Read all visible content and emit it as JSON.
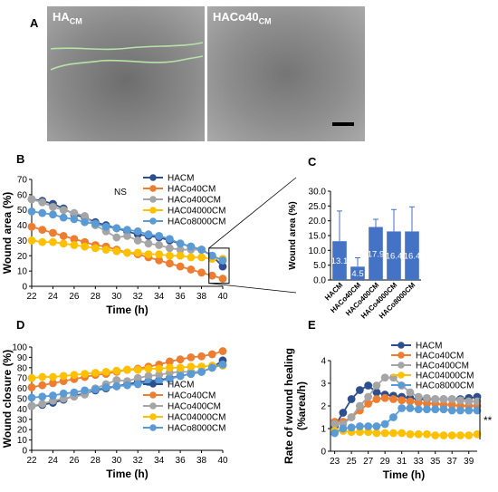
{
  "panel_letters": [
    "A",
    "B",
    "C",
    "D",
    "E"
  ],
  "micrographs": [
    {
      "main": "HA",
      "sub": "CM"
    },
    {
      "main": "HACo40",
      "sub": "CM"
    }
  ],
  "colors": {
    "HACM": "#2e4f8f",
    "HACo40CM": "#ed7d31",
    "HACo400CM": "#a5a5a5",
    "HAC04000CM": "#ffc000",
    "HACo8000CM": "#5b9bd5",
    "bar": "#4472c4"
  },
  "chart_data": [
    {
      "id": "B",
      "type": "line",
      "xlabel": "Time (h)",
      "ylabel": "Wound area (%)",
      "xlim": [
        22,
        40
      ],
      "ylim": [
        0,
        70
      ],
      "xticks": [
        22,
        24,
        26,
        28,
        30,
        32,
        34,
        36,
        38,
        40
      ],
      "yticks": [
        0,
        10,
        20,
        30,
        40,
        50,
        60,
        70
      ],
      "annotation": "NS",
      "legend": "top-center",
      "x": [
        22,
        23,
        24,
        25,
        26,
        27,
        28,
        29,
        30,
        31,
        32,
        33,
        34,
        35,
        36,
        37,
        38,
        39,
        40
      ],
      "series": [
        {
          "name": "HACM",
          "key": "HACM",
          "values": [
            57,
            56,
            54,
            51,
            47,
            45,
            42,
            40,
            38,
            36,
            34,
            33,
            32,
            30,
            28,
            26,
            24,
            20,
            13
          ]
        },
        {
          "name": "HACo40CM",
          "key": "HACo40CM",
          "values": [
            39,
            37,
            35,
            33,
            31,
            29,
            27,
            26,
            24,
            22,
            21,
            19,
            17,
            15,
            13,
            11,
            9,
            7,
            5
          ]
        },
        {
          "name": "HACo400CM",
          "key": "HACo400CM",
          "values": [
            57,
            55,
            52,
            50,
            48,
            46,
            40,
            36,
            32,
            33,
            30,
            28,
            27,
            25,
            24,
            24,
            24,
            20,
            17
          ]
        },
        {
          "name": "HAC04000CM",
          "key": "HAC04000CM",
          "values": [
            30,
            29,
            29,
            28,
            27,
            26,
            25,
            24,
            23,
            22,
            22,
            21,
            21,
            20,
            20,
            19,
            19,
            18,
            18
          ]
        },
        {
          "name": "HACo8000CM",
          "key": "HACo8000CM",
          "values": [
            49,
            48,
            47,
            45,
            44,
            42,
            41,
            39,
            38,
            37,
            36,
            34,
            33,
            31,
            28,
            26,
            24,
            20,
            17
          ]
        }
      ]
    },
    {
      "id": "C",
      "type": "bar",
      "ylabel": "Wound area (%)",
      "ylim": [
        0,
        30
      ],
      "yticks": [
        0.0,
        5.0,
        10.0,
        15.0,
        20.0,
        25.0,
        30.0
      ],
      "categories": [
        "HACM",
        "HACo40CM",
        "HACo400CM",
        "HACo4000CM",
        "HACo8000CM"
      ],
      "values": [
        13.1,
        4.5,
        17.9,
        16.4,
        16.4
      ],
      "value_labels": [
        "13.1",
        "4.5",
        "17.9",
        "16.4",
        "16.4"
      ],
      "errors": [
        10.2,
        3.0,
        2.6,
        7.4,
        8.3
      ]
    },
    {
      "id": "D",
      "type": "line",
      "xlabel": "Time (h)",
      "ylabel": "Wound closure (%)",
      "xlim": [
        22,
        40
      ],
      "ylim": [
        0,
        100
      ],
      "xticks": [
        22,
        24,
        26,
        28,
        30,
        32,
        34,
        36,
        38,
        40
      ],
      "yticks": [
        0,
        10,
        20,
        30,
        40,
        50,
        60,
        70,
        80,
        90,
        100
      ],
      "legend": "bottom-right",
      "x": [
        22,
        23,
        24,
        25,
        26,
        27,
        28,
        29,
        30,
        31,
        32,
        33,
        34,
        35,
        36,
        37,
        38,
        39,
        40
      ],
      "series": [
        {
          "name": "HACM",
          "key": "HACM",
          "values": [
            43,
            44,
            46,
            49,
            53,
            55,
            58,
            60,
            62,
            64,
            66,
            67,
            68,
            70,
            72,
            74,
            76,
            80,
            87
          ]
        },
        {
          "name": "HACo40CM",
          "key": "HACo40CM",
          "values": [
            61,
            63,
            65,
            67,
            69,
            71,
            73,
            74,
            76,
            78,
            79,
            81,
            83,
            86,
            88,
            90,
            91,
            93,
            96
          ]
        },
        {
          "name": "HACo400CM",
          "key": "HACo400CM",
          "values": [
            43,
            45,
            48,
            50,
            52,
            54,
            60,
            64,
            68,
            67,
            70,
            72,
            73,
            75,
            76,
            76,
            76,
            80,
            83
          ]
        },
        {
          "name": "HAC04000CM",
          "key": "HAC04000CM",
          "values": [
            70,
            71,
            71,
            72,
            73,
            74,
            75,
            76,
            77,
            78,
            78,
            79,
            79,
            80,
            80,
            81,
            81,
            82,
            82
          ]
        },
        {
          "name": "HACo8000CM",
          "key": "HACo8000CM",
          "values": [
            51,
            52,
            53,
            55,
            56,
            58,
            59,
            61,
            62,
            63,
            64,
            66,
            67,
            69,
            72,
            74,
            76,
            80,
            83
          ]
        }
      ]
    },
    {
      "id": "E",
      "type": "line",
      "xlabel": "Time (h)",
      "ylabel": "Rate of wound healing\n(%area/h)",
      "xlim": [
        22.5,
        40
      ],
      "ylim": [
        0,
        4
      ],
      "xticks": [
        23,
        25,
        27,
        29,
        31,
        33,
        35,
        37,
        39
      ],
      "yticks": [
        0,
        1,
        2,
        3,
        4
      ],
      "annotation": "**",
      "legend": "top-right",
      "x": [
        23,
        24,
        25,
        26,
        27,
        28,
        29,
        30,
        31,
        32,
        33,
        34,
        35,
        36,
        37,
        38,
        39,
        40
      ],
      "series": [
        {
          "name": "HACM",
          "key": "HACM",
          "values": [
            1.1,
            1.7,
            2.3,
            2.7,
            2.9,
            2.6,
            2.5,
            2.45,
            2.4,
            2.35,
            2.3,
            2.3,
            2.3,
            2.3,
            2.3,
            2.3,
            2.35,
            2.4
          ]
        },
        {
          "name": "HACo40CM",
          "key": "HACo40CM",
          "values": [
            1.3,
            1.3,
            1.5,
            1.8,
            2.1,
            2.3,
            2.35,
            2.3,
            2.25,
            2.2,
            2.15,
            2.1,
            2.1,
            2.05,
            2.05,
            2.0,
            2.0,
            2.0
          ]
        },
        {
          "name": "HACo400CM",
          "key": "HACo400CM",
          "values": [
            1.2,
            1.2,
            1.5,
            2.0,
            2.4,
            2.9,
            3.25,
            3.25,
            2.9,
            2.6,
            2.4,
            2.35,
            2.3,
            2.3,
            2.3,
            2.25,
            2.2,
            2.2
          ]
        },
        {
          "name": "HAC04000CM",
          "key": "HAC04000CM",
          "values": [
            0.9,
            0.9,
            0.85,
            0.85,
            0.85,
            0.8,
            0.8,
            0.8,
            0.8,
            0.75,
            0.75,
            0.75,
            0.7,
            0.7,
            0.7,
            0.7,
            0.7,
            0.75
          ]
        },
        {
          "name": "HACo8000CM",
          "key": "HACo8000CM",
          "values": [
            0.8,
            1.0,
            1.05,
            1.1,
            1.1,
            1.1,
            1.2,
            1.5,
            1.9,
            1.9,
            1.85,
            1.85,
            1.85,
            1.85,
            1.8,
            1.8,
            1.8,
            1.8
          ]
        }
      ]
    }
  ]
}
